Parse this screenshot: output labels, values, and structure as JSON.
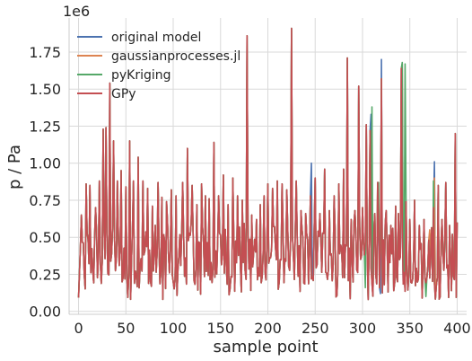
{
  "chart_data": {
    "type": "line",
    "xlabel": "sample point",
    "ylabel": "p / Pa",
    "y_offset_text": "1e6",
    "xlim": [
      -10,
      410
    ],
    "ylim": [
      -0.02,
      1.98
    ],
    "x_ticks": [
      0,
      50,
      100,
      150,
      200,
      250,
      300,
      350,
      400
    ],
    "y_ticks": [
      0.0,
      0.25,
      0.5,
      0.75,
      1.0,
      1.25,
      1.5,
      1.75
    ],
    "y_tick_labels": [
      "0.00",
      "0.25",
      "0.50",
      "0.75",
      "1.00",
      "1.25",
      "1.50",
      "1.75"
    ],
    "grid": true,
    "legend_position": "top-left",
    "series_names": [
      "original model",
      "gaussianprocesses.jl",
      "pyKriging",
      "GPy"
    ],
    "colors": {
      "original model": "#4c72b0",
      "gaussianprocesses.jl": "#dd8452",
      "pyKriging": "#55a868",
      "GPy": "#c44e52",
      "grid": "#d9d9d9",
      "axis": "#cccccc"
    },
    "spikes": [
      [
        3,
        0.65
      ],
      [
        8,
        0.86
      ],
      [
        12,
        0.85
      ],
      [
        18,
        0.7
      ],
      [
        22,
        0.88
      ],
      [
        26,
        1.23
      ],
      [
        29,
        1.24
      ],
      [
        33,
        1.54
      ],
      [
        37,
        1.15
      ],
      [
        41,
        0.88
      ],
      [
        45,
        0.95
      ],
      [
        50,
        0.84
      ],
      [
        54,
        1.15
      ],
      [
        58,
        0.88
      ],
      [
        63,
        1.04
      ],
      [
        68,
        0.88
      ],
      [
        73,
        0.83
      ],
      [
        78,
        0.71
      ],
      [
        84,
        0.87
      ],
      [
        88,
        0.77
      ],
      [
        93,
        0.74
      ],
      [
        98,
        0.82
      ],
      [
        103,
        0.78
      ],
      [
        110,
        0.87
      ],
      [
        115,
        1.1
      ],
      [
        120,
        0.85
      ],
      [
        125,
        0.72
      ],
      [
        130,
        0.86
      ],
      [
        134,
        0.78
      ],
      [
        138,
        0.76
      ],
      [
        143,
        1.14
      ],
      [
        148,
        0.78
      ],
      [
        153,
        0.92
      ],
      [
        158,
        0.72
      ],
      [
        163,
        0.9
      ],
      [
        168,
        0.78
      ],
      [
        173,
        0.75
      ],
      [
        178,
        1.86
      ],
      [
        183,
        0.65
      ],
      [
        188,
        0.62
      ],
      [
        192,
        0.72
      ],
      [
        196,
        0.78
      ],
      [
        200,
        0.86
      ],
      [
        205,
        0.83
      ],
      [
        210,
        0.88
      ],
      [
        215,
        0.86
      ],
      [
        220,
        0.82
      ],
      [
        225,
        1.91
      ],
      [
        230,
        0.88
      ],
      [
        235,
        0.68
      ],
      [
        240,
        0.66
      ],
      [
        245,
        0.78
      ],
      [
        250,
        0.9
      ],
      [
        255,
        0.66
      ],
      [
        260,
        0.96
      ],
      [
        265,
        0.68
      ],
      [
        270,
        0.78
      ],
      [
        275,
        0.86
      ],
      [
        280,
        0.96
      ],
      [
        284,
        1.71
      ],
      [
        288,
        0.62
      ],
      [
        292,
        0.68
      ],
      [
        296,
        1.52
      ],
      [
        300,
        0.7
      ],
      [
        304,
        1.26
      ],
      [
        308,
        1.22
      ],
      [
        313,
        0.66
      ],
      [
        316,
        0.87
      ],
      [
        320,
        1.57
      ],
      [
        325,
        0.68
      ],
      [
        330,
        0.58
      ],
      [
        335,
        0.71
      ],
      [
        338,
        0.66
      ],
      [
        341,
        1.64
      ],
      [
        346,
        0.74
      ],
      [
        350,
        0.62
      ],
      [
        355,
        0.75
      ],
      [
        360,
        0.58
      ],
      [
        365,
        0.62
      ],
      [
        370,
        0.48
      ],
      [
        375,
        0.7
      ],
      [
        380,
        0.85
      ],
      [
        384,
        0.62
      ],
      [
        388,
        0.87
      ],
      [
        392,
        0.58
      ],
      [
        395,
        0.52
      ],
      [
        398,
        1.2
      ],
      [
        400,
        0.6
      ]
    ],
    "series_overrides": {
      "original model": [
        [
          320,
          1.7
        ],
        [
          316,
          0.6
        ],
        [
          376,
          1.01
        ],
        [
          309,
          1.33
        ],
        [
          246,
          1.0
        ],
        [
          319,
          0.12
        ]
      ],
      "gaussianprocesses.jl": [
        [
          342,
          1.67
        ],
        [
          376,
          0.9
        ],
        [
          371,
          0.55
        ]
      ],
      "pyKriging": [
        [
          310,
          1.38
        ],
        [
          342,
          1.68
        ],
        [
          345,
          1.67
        ],
        [
          317,
          0.87
        ],
        [
          375,
          0.88
        ],
        [
          367,
          0.1
        ],
        [
          303,
          0.16
        ]
      ],
      "GPy": []
    }
  }
}
